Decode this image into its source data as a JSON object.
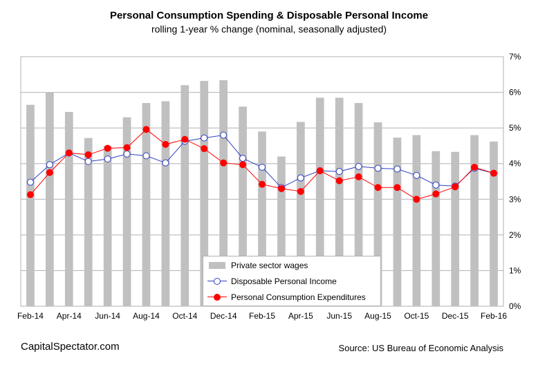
{
  "header": {
    "title": "Personal Consumption Spending & Disposable Personal Income",
    "subtitle": "rolling 1-year % change (nominal, seasonally adjusted)"
  },
  "footer": {
    "left": "CapitalSpectator.com",
    "right": "Source: US Bureau of Economic Analysis"
  },
  "legend": {
    "wages": "Private sector wages",
    "income": "Disposable Personal Income",
    "consumption": "Personal Consumption Expenditures"
  },
  "colors": {
    "bars": "#c0c0c0",
    "income_line": "#2f3fbf",
    "consumption_line": "#ff0000",
    "grid": "#b0b0b0"
  },
  "chart_data": {
    "type": "bar",
    "x": [
      "Feb-14",
      "Mar-14",
      "Apr-14",
      "May-14",
      "Jun-14",
      "Jul-14",
      "Aug-14",
      "Sep-14",
      "Oct-14",
      "Nov-14",
      "Dec-14",
      "Jan-15",
      "Feb-15",
      "Mar-15",
      "Apr-15",
      "May-15",
      "Jun-15",
      "Jul-15",
      "Aug-15",
      "Sep-15",
      "Oct-15",
      "Nov-15",
      "Dec-15",
      "Jan-16",
      "Feb-16"
    ],
    "x_tick_labels": [
      "Feb-14",
      "Apr-14",
      "Jun-14",
      "Aug-14",
      "Oct-14",
      "Dec-14",
      "Feb-15",
      "Apr-15",
      "Jun-15",
      "Aug-15",
      "Oct-15",
      "Dec-15",
      "Feb-16"
    ],
    "y_tick_labels": [
      "0%",
      "1%",
      "2%",
      "3%",
      "4%",
      "5%",
      "6%",
      "7%"
    ],
    "ylim": [
      0,
      7
    ],
    "y_axis_side": "right",
    "grid": true,
    "legend_position": "bottom-center",
    "series": [
      {
        "name": "Private sector wages",
        "type": "bar",
        "values": [
          5.65,
          6.0,
          5.45,
          4.72,
          4.5,
          5.3,
          5.7,
          5.75,
          6.2,
          6.32,
          6.34,
          5.6,
          4.9,
          4.2,
          5.17,
          5.85,
          5.85,
          5.7,
          5.16,
          4.73,
          4.8,
          4.35,
          4.33,
          4.8,
          4.62
        ]
      },
      {
        "name": "Disposable Personal Income",
        "type": "line",
        "values": [
          3.48,
          3.97,
          4.3,
          4.06,
          4.13,
          4.27,
          4.22,
          4.02,
          4.63,
          4.72,
          4.8,
          4.15,
          3.9,
          3.33,
          3.6,
          3.8,
          3.78,
          3.92,
          3.87,
          3.85,
          3.67,
          3.4,
          3.37,
          3.87,
          3.73
        ]
      },
      {
        "name": "Personal Consumption Expenditures",
        "type": "line",
        "values": [
          3.13,
          3.75,
          4.3,
          4.25,
          4.43,
          4.45,
          4.96,
          4.54,
          4.68,
          4.42,
          4.02,
          3.97,
          3.42,
          3.3,
          3.22,
          3.8,
          3.52,
          3.63,
          3.33,
          3.33,
          3.0,
          3.15,
          3.35,
          3.9,
          3.73
        ]
      }
    ]
  }
}
